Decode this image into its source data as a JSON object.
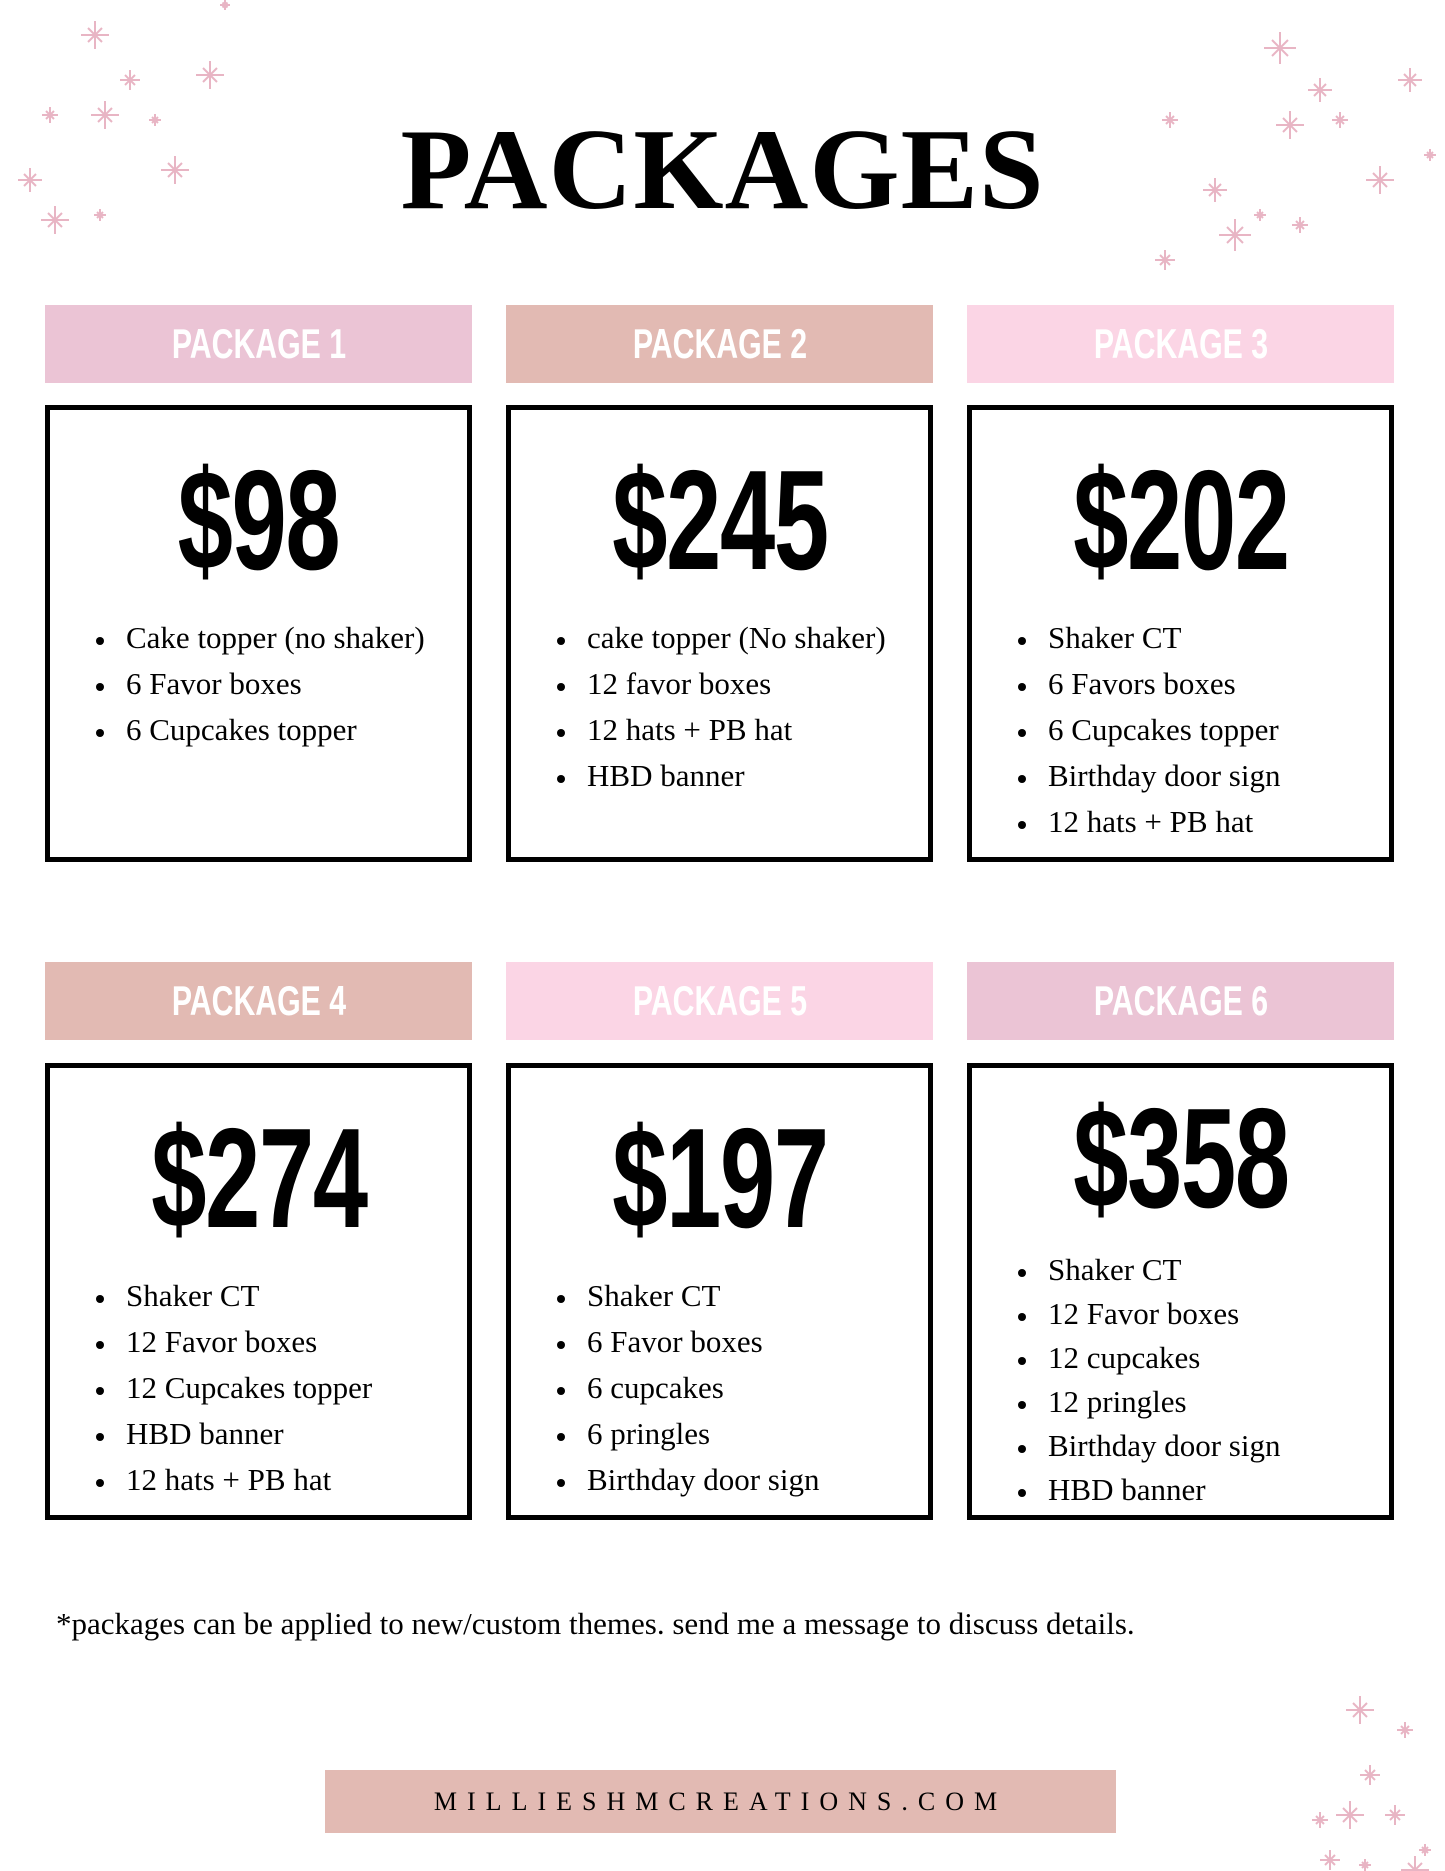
{
  "title": "PACKAGES",
  "colors": {
    "pink_lilac": "#ebc4d5",
    "dusty_rose": "#e2bab3",
    "light_pink": "#fbd5e5",
    "sparkle": "#e8b5c4"
  },
  "packages": [
    {
      "label": "PACKAGE 1",
      "price": "$98",
      "color": "#ebc4d5",
      "items": [
        "Cake topper (no shaker)",
        "6 Favor boxes",
        "6 Cupcakes topper"
      ]
    },
    {
      "label": "PACKAGE 2",
      "price": "$245",
      "color": "#e2bab3",
      "items": [
        "cake topper (No shaker)",
        "12 favor boxes",
        "12 hats + PB hat",
        "HBD banner"
      ]
    },
    {
      "label": "PACKAGE 3",
      "price": "$202",
      "color": "#fbd5e5",
      "items": [
        "Shaker CT",
        "6 Favors boxes",
        "6 Cupcakes topper",
        "Birthday door sign",
        "12 hats  + PB hat"
      ]
    },
    {
      "label": "PACKAGE 4",
      "price": "$274",
      "color": "#e2bab3",
      "items": [
        "Shaker CT",
        "12 Favor boxes",
        "12 Cupcakes topper",
        "HBD banner",
        "12 hats + PB hat"
      ]
    },
    {
      "label": "PACKAGE 5",
      "price": "$197",
      "color": "#fbd5e5",
      "items": [
        "Shaker CT",
        "6 Favor boxes",
        "6 cupcakes",
        "6 pringles",
        "Birthday door sign"
      ]
    },
    {
      "label": "PACKAGE 6",
      "price": "$358",
      "color": "#ebc4d5",
      "items": [
        "Shaker CT",
        "12 Favor boxes",
        "12 cupcakes",
        "12 pringles",
        "Birthday door sign",
        "HBD banner"
      ]
    }
  ],
  "note": "*packages can be applied to new/custom themes. send me a message to discuss details.",
  "footer": "MILLIESHMCREATIONS.COM"
}
